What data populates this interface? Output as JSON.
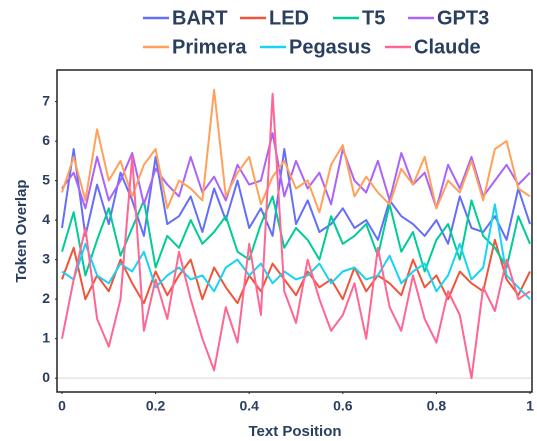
{
  "chart_data": {
    "type": "line",
    "xlabel": "Text Position",
    "ylabel": "Token Overlap",
    "legend": "top",
    "zeroline": true,
    "xlim": [
      0,
      1
    ],
    "ylim": [
      -0.35,
      7.8
    ],
    "xticks": [
      0,
      0.2,
      0.4,
      0.6,
      0.8,
      1
    ],
    "yticks": [
      0,
      1,
      2,
      3,
      4,
      5,
      6,
      7
    ],
    "x": [
      0,
      0.025,
      0.05,
      0.075,
      0.1,
      0.125,
      0.15,
      0.175,
      0.2,
      0.225,
      0.25,
      0.275,
      0.3,
      0.325,
      0.35,
      0.375,
      0.4,
      0.425,
      0.45,
      0.475,
      0.5,
      0.525,
      0.55,
      0.575,
      0.6,
      0.625,
      0.65,
      0.675,
      0.7,
      0.725,
      0.75,
      0.775,
      0.8,
      0.825,
      0.85,
      0.875,
      0.9,
      0.925,
      0.95,
      0.975,
      1
    ],
    "series": [
      {
        "name": "BART",
        "color": "#636efa",
        "values": [
          3.8,
          5.8,
          3.6,
          4.9,
          3.9,
          5.2,
          4.5,
          3.6,
          5.6,
          3.9,
          4.1,
          4.6,
          3.7,
          4.8,
          4.0,
          5.0,
          3.8,
          4.3,
          3.6,
          5.8,
          3.9,
          4.5,
          3.7,
          3.9,
          4.3,
          3.8,
          4.0,
          3.5,
          4.5,
          4.1,
          3.9,
          3.6,
          4.0,
          3.4,
          4.6,
          3.8,
          3.7,
          4.1,
          3.5,
          4.8,
          3.9
        ]
      },
      {
        "name": "LED",
        "color": "#ef553b",
        "values": [
          2.5,
          3.3,
          2.0,
          2.6,
          2.2,
          3.0,
          2.4,
          1.9,
          2.7,
          2.1,
          2.6,
          3.0,
          2.0,
          2.8,
          2.3,
          1.9,
          2.6,
          2.2,
          2.9,
          2.5,
          2.1,
          2.7,
          2.3,
          2.5,
          2.0,
          2.8,
          2.2,
          2.6,
          2.4,
          2.1,
          3.0,
          2.3,
          2.6,
          2.0,
          2.7,
          2.4,
          2.2,
          3.5,
          2.5,
          2.1,
          2.7
        ]
      },
      {
        "name": "T5",
        "color": "#00cc96",
        "values": [
          3.2,
          4.2,
          2.6,
          3.5,
          4.3,
          3.1,
          3.8,
          4.5,
          2.8,
          3.6,
          3.3,
          4.0,
          3.4,
          3.7,
          4.1,
          3.2,
          3.0,
          3.9,
          4.6,
          3.3,
          3.8,
          3.5,
          3.0,
          4.1,
          3.4,
          3.6,
          3.9,
          3.1,
          4.4,
          3.2,
          3.7,
          2.7,
          3.5,
          3.9,
          3.0,
          4.5,
          3.6,
          3.3,
          2.8,
          4.1,
          3.4
        ]
      },
      {
        "name": "GPT3",
        "color": "#ab63fa",
        "values": [
          4.8,
          5.2,
          4.3,
          5.6,
          4.5,
          5.0,
          5.7,
          4.4,
          5.3,
          4.9,
          4.6,
          5.6,
          4.7,
          5.1,
          4.5,
          5.4,
          4.9,
          5.0,
          6.2,
          4.6,
          5.5,
          4.8,
          5.2,
          4.4,
          5.8,
          5.0,
          4.7,
          5.5,
          4.5,
          5.7,
          4.9,
          5.2,
          4.3,
          5.4,
          4.8,
          5.6,
          4.6,
          5.0,
          5.4,
          4.9,
          5.2
        ]
      },
      {
        "name": "Primera",
        "color": "#ffa15a",
        "values": [
          4.7,
          5.6,
          4.5,
          6.3,
          5.0,
          5.5,
          4.6,
          5.4,
          5.8,
          4.3,
          5.0,
          4.8,
          4.5,
          7.3,
          4.6,
          5.2,
          5.6,
          4.4,
          5.1,
          5.5,
          4.8,
          5.0,
          4.2,
          5.4,
          5.9,
          4.6,
          5.1,
          4.7,
          4.4,
          5.3,
          4.9,
          5.6,
          4.3,
          5.0,
          4.7,
          5.5,
          4.5,
          5.8,
          6.0,
          4.8,
          4.6
        ]
      },
      {
        "name": "Pegasus",
        "color": "#19d3f3",
        "values": [
          2.7,
          2.5,
          3.4,
          2.6,
          2.4,
          2.9,
          2.7,
          3.2,
          2.3,
          2.6,
          2.8,
          2.5,
          2.6,
          2.2,
          2.8,
          3.0,
          2.6,
          2.9,
          2.4,
          2.7,
          2.5,
          2.6,
          2.9,
          2.4,
          2.7,
          2.8,
          2.5,
          2.6,
          3.1,
          2.4,
          2.7,
          2.9,
          2.2,
          2.6,
          3.4,
          2.5,
          2.8,
          4.4,
          2.6,
          2.3,
          2.0
        ]
      },
      {
        "name": "Claude",
        "color": "#ff6692",
        "values": [
          1.0,
          2.5,
          3.8,
          1.5,
          0.8,
          2.0,
          5.6,
          1.2,
          2.5,
          1.5,
          3.2,
          2.0,
          1.0,
          0.2,
          1.8,
          0.9,
          3.4,
          1.6,
          7.2,
          2.2,
          1.4,
          3.0,
          2.0,
          1.2,
          1.6,
          2.4,
          1.0,
          3.3,
          1.8,
          1.2,
          2.6,
          1.5,
          0.9,
          2.2,
          1.6,
          0.0,
          2.3,
          1.7,
          3.0,
          2.0,
          2.2
        ]
      }
    ]
  }
}
